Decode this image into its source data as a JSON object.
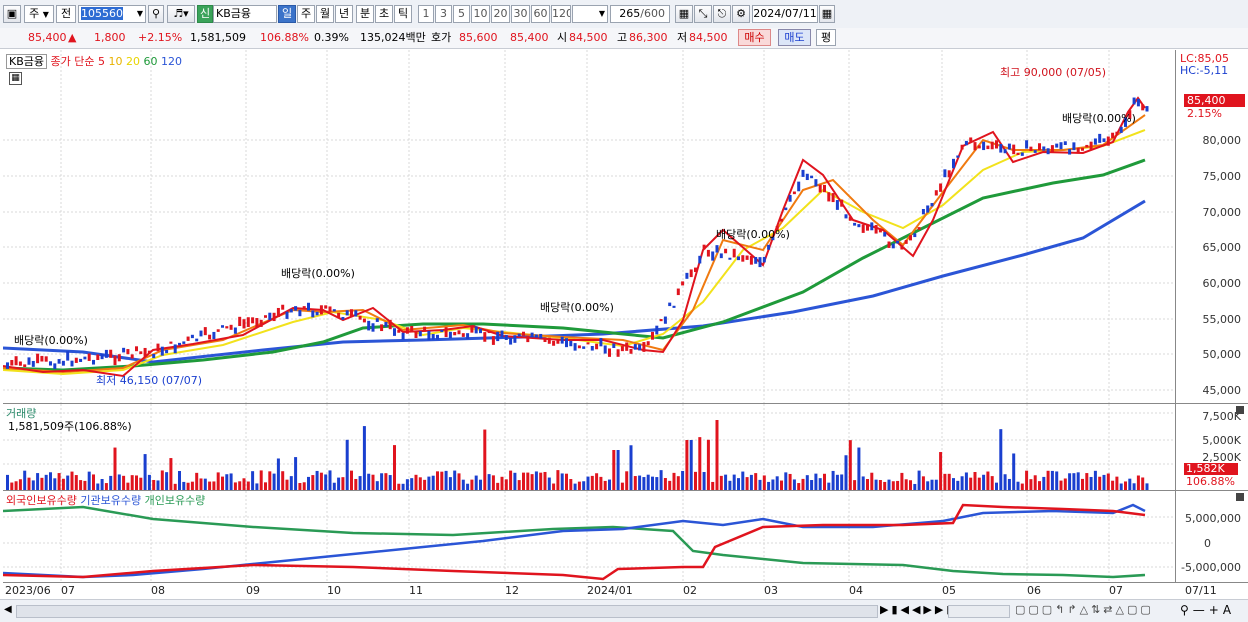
{
  "toolbar": {
    "type_select": "주",
    "type_select2": "전",
    "code": "105560",
    "name": "KB금융",
    "credit_badge": "신",
    "periods": [
      "일",
      "주",
      "월",
      "년",
      "분",
      "초",
      "틱"
    ],
    "numbers": [
      "1",
      "3",
      "5",
      "10",
      "20",
      "30",
      "60",
      "120"
    ],
    "count": "265",
    "count_total": "/600",
    "date": "2024/07/11"
  },
  "quote": {
    "price": "85,400",
    "change": "1,800",
    "rate": "+2.15%",
    "volume": "1,581,509",
    "vol_ratio": "106.88%",
    "turnover": "0.39%",
    "amount": "135,024백만",
    "ask_label": "호가",
    "ask": "85,600",
    "bid": "85,400",
    "open_label": "시",
    "open": "84,500",
    "high_label": "고",
    "high": "86,300",
    "low_label": "저",
    "low": "84,500",
    "buy": "매수",
    "sell": "매도",
    "eval": "평"
  },
  "price_panel": {
    "stock_label": "KB금융",
    "ma_label": "종가 단순",
    "ma_periods": [
      "5",
      "10",
      "20",
      "60",
      "120"
    ],
    "lc": "LC:85,05",
    "hc": "HC:-5,11",
    "last_price": "85,400",
    "last_rate": "2.15%",
    "yticks": [
      "80,000",
      "75,000",
      "70,000",
      "65,000",
      "60,000",
      "55,000",
      "50,000",
      "45,000"
    ],
    "high_note": "최고 90,000 (07/05)",
    "low_note": "최저 46,150 (07/07)",
    "dividends": [
      "배당락(0.00%)",
      "배당락(0.00%)",
      "배당락(0.00%)",
      "배당락(0.00%)",
      "배당락(0.00%)"
    ]
  },
  "volume_panel": {
    "title": "거래량",
    "value": "1,581,509주(106.88%)",
    "yticks": [
      "7,500K",
      "5,000K",
      "2,500K"
    ],
    "last": "1,582K",
    "last_rate": "106.88%"
  },
  "holder_panel": {
    "series": [
      "외국인보유수량",
      "기관보유수량",
      "개인보유수량"
    ],
    "yticks": [
      "5,000,000",
      "0",
      "-5,000,000"
    ]
  },
  "xaxis": {
    "labels": [
      "2023/06",
      "07",
      "08",
      "09",
      "10",
      "11",
      "12",
      "2024/01",
      "02",
      "03",
      "04",
      "05",
      "06",
      "07"
    ],
    "end_label": "07/11"
  },
  "colors": {
    "up": "#e0141e",
    "down": "#1a3fcf",
    "ma5": "#e0141e",
    "ma10": "#f07a10",
    "ma20": "#f2e21c",
    "ma60": "#1f9a3a",
    "ma120": "#2b55d6",
    "foreign": "#e0141e",
    "institution": "#2b55d6",
    "individual": "#2a9a55"
  }
}
